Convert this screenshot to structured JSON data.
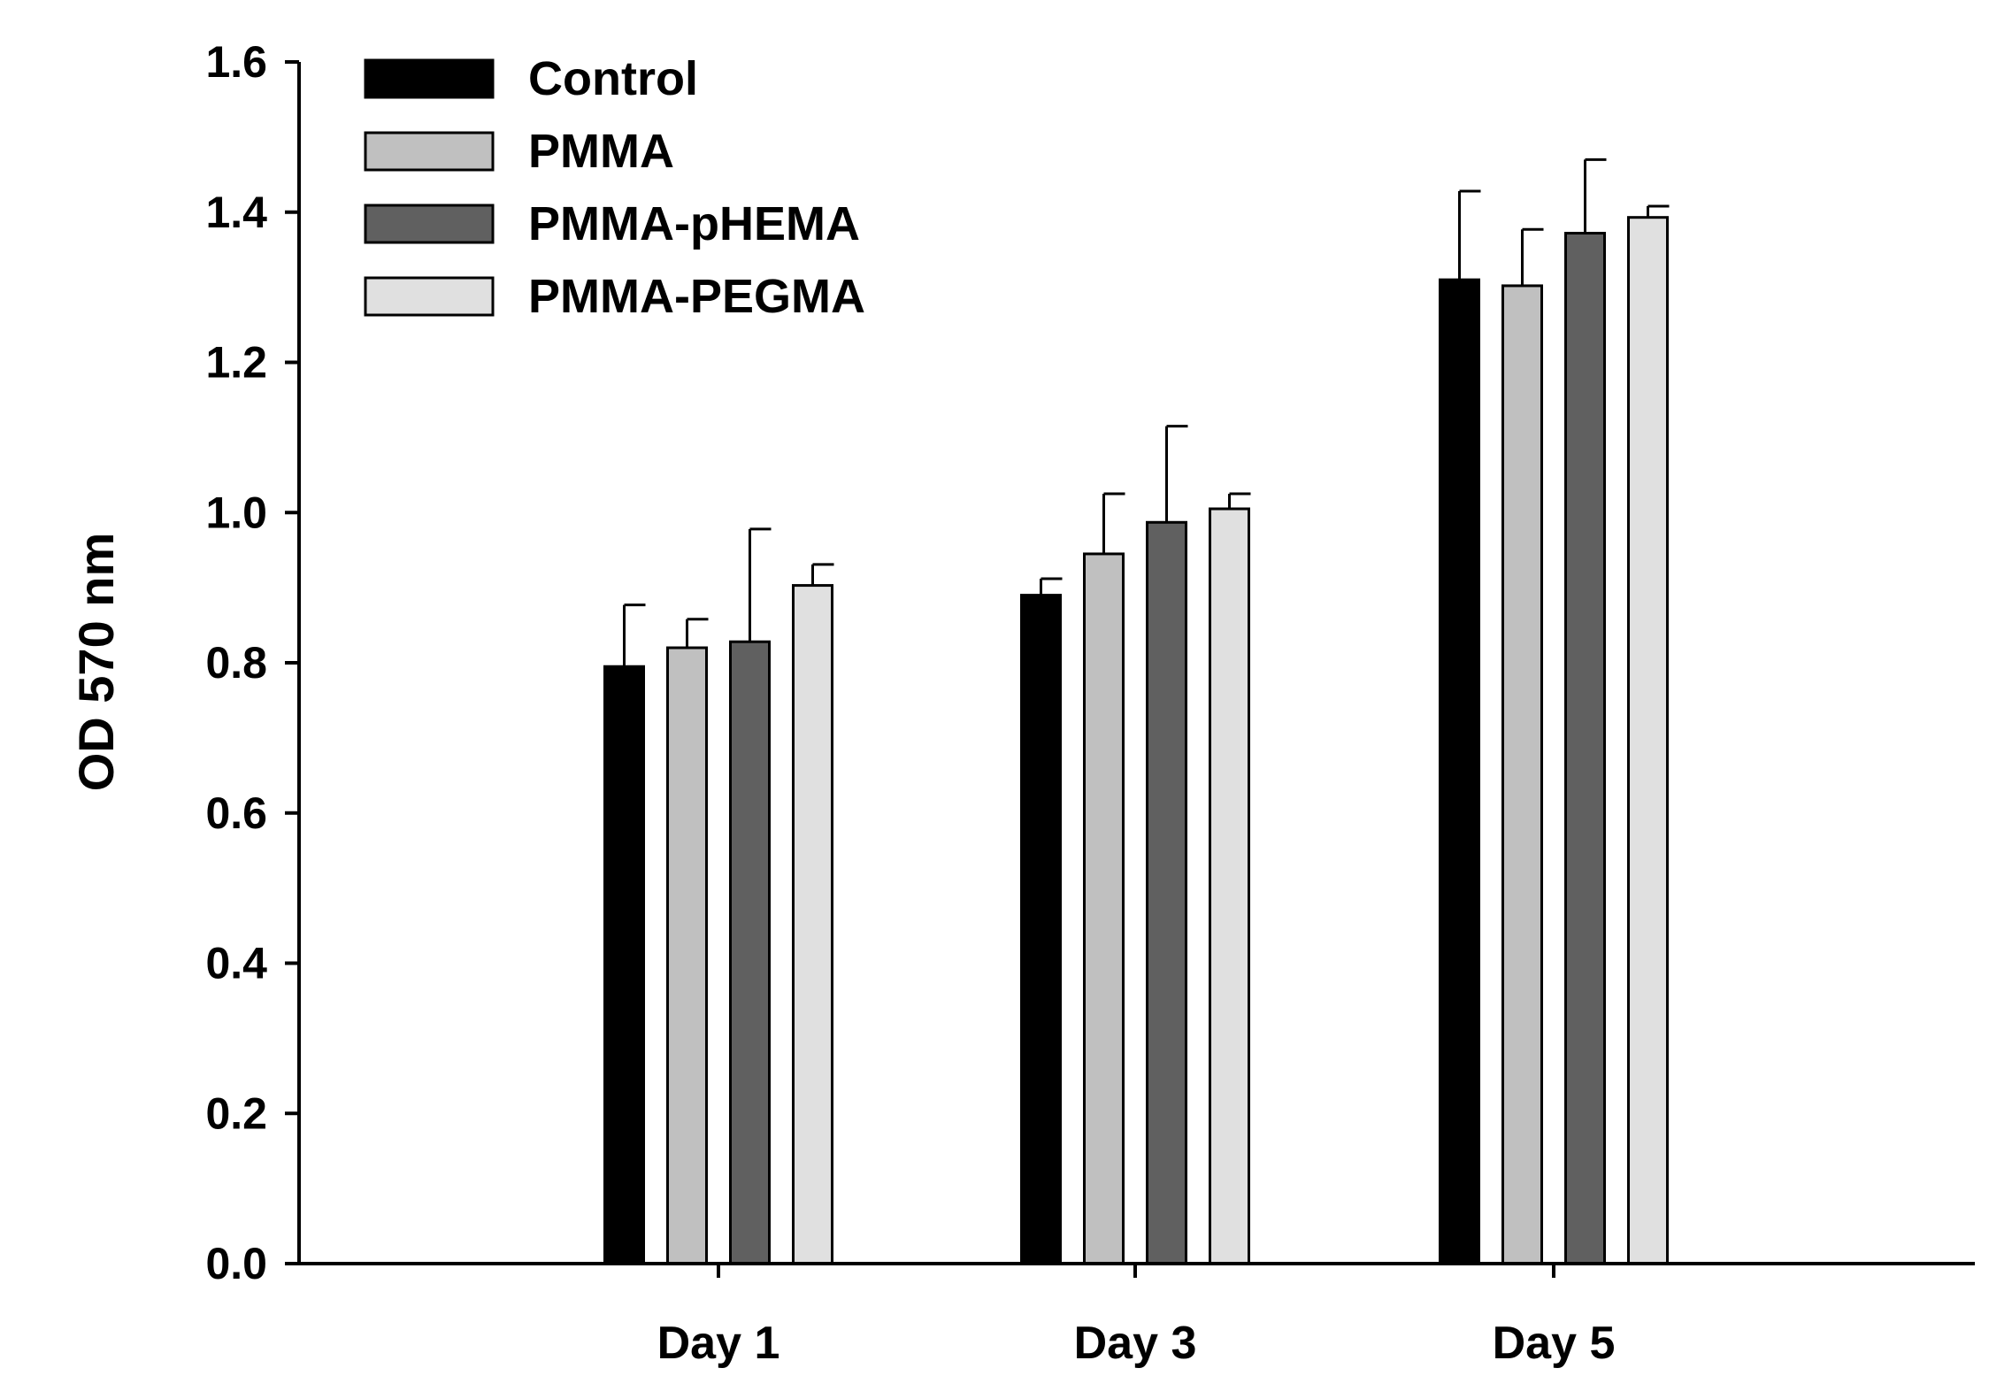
{
  "chart_data": {
    "type": "bar",
    "title": "",
    "xlabel": "",
    "ylabel": "OD 570 nm",
    "ylim": [
      0,
      1.6
    ],
    "yticks": [
      "0.0",
      "0.2",
      "0.4",
      "0.6",
      "0.8",
      "1.0",
      "1.2",
      "1.4",
      "1.6"
    ],
    "grid": false,
    "legend_position": "top-left",
    "categories": [
      "Day 1",
      "Day 3",
      "Day 5"
    ],
    "series": [
      {
        "name": "Control",
        "color": "#000000",
        "values": [
          0.795,
          0.89,
          1.31
        ],
        "errors": [
          0.082,
          0.022,
          0.118
        ]
      },
      {
        "name": "PMMA",
        "color": "#c0c0c0",
        "values": [
          0.82,
          0.945,
          1.302
        ],
        "errors": [
          0.038,
          0.08,
          0.075
        ]
      },
      {
        "name": "PMMA-pHEMA",
        "color": "#606060",
        "values": [
          0.828,
          0.987,
          1.372
        ],
        "errors": [
          0.15,
          0.128,
          0.098
        ]
      },
      {
        "name": "PMMA-PEGMA",
        "color": "#e0e0e0",
        "values": [
          0.903,
          1.005,
          1.393
        ],
        "errors": [
          0.028,
          0.02,
          0.015
        ]
      }
    ]
  }
}
